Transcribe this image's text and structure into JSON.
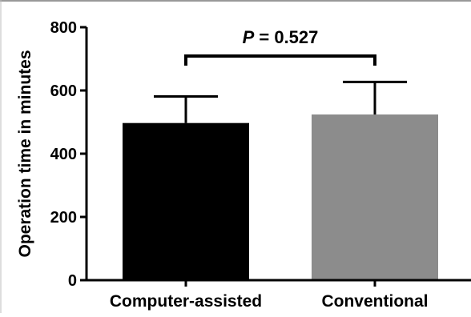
{
  "chart_data": {
    "type": "bar",
    "categories": [
      "Computer-assisted",
      "Conventional"
    ],
    "values": [
      497,
      524
    ],
    "error_bars": [
      84,
      103
    ],
    "colors": [
      "#000000",
      "#8c8c8c"
    ],
    "ylabel": "Operation time in minutes",
    "xlabel": "",
    "ylim": [
      0,
      800
    ],
    "yticks": [
      "0",
      "200",
      "400",
      "600",
      "800"
    ],
    "grid": false,
    "annotation": {
      "p_symbol": "P",
      "p_text": " = 0.527",
      "between": [
        "Computer-assisted",
        "Conventional"
      ]
    }
  }
}
